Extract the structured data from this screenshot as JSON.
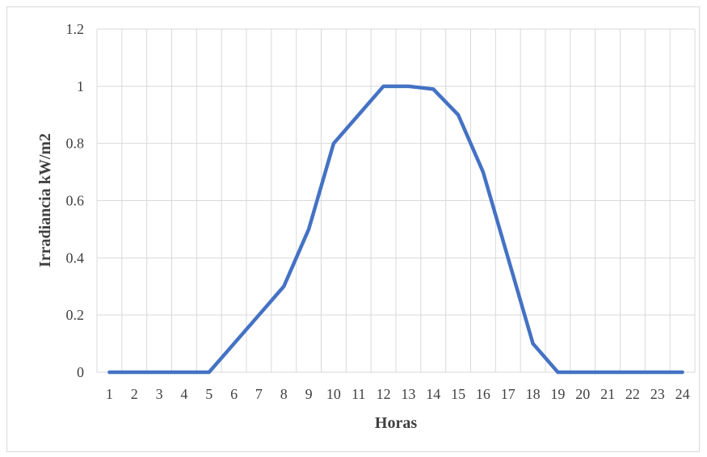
{
  "chart_data": {
    "type": "line",
    "title": "",
    "xlabel": "Horas",
    "ylabel": "Irradiancia  kW/m2",
    "categories": [
      "1",
      "2",
      "3",
      "4",
      "5",
      "6",
      "7",
      "8",
      "9",
      "10",
      "11",
      "12",
      "13",
      "14",
      "15",
      "16",
      "17",
      "18",
      "19",
      "20",
      "21",
      "22",
      "23",
      "24"
    ],
    "series": [
      {
        "values": [
          0,
          0,
          0,
          0,
          0,
          0.1,
          0.2,
          0.3,
          0.5,
          0.8,
          0.9,
          1.0,
          1.0,
          0.99,
          0.9,
          0.7,
          0.4,
          0.1,
          0,
          0,
          0,
          0,
          0,
          0
        ],
        "color": "#4472C4"
      }
    ],
    "ylim": [
      0,
      1.2
    ],
    "yticks": [
      "0",
      "0.2",
      "0.4",
      "0.6",
      "0.8",
      "1",
      "1.2"
    ],
    "grid": true,
    "legend": "none"
  }
}
